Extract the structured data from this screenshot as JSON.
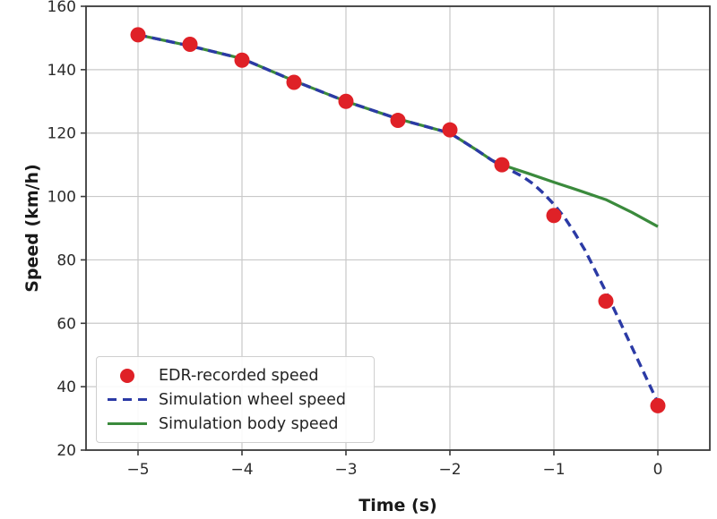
{
  "chart_data": {
    "type": "scatter+line",
    "title": "",
    "xlabel": "Time (s)",
    "ylabel": "Speed (km/h)",
    "xlim": [
      -5.5,
      0.5
    ],
    "ylim": [
      20,
      160
    ],
    "xticks": [
      -5,
      -4,
      -3,
      -2,
      -1,
      0
    ],
    "xtick_labels": [
      "−5",
      "−4",
      "−3",
      "−2",
      "−1",
      "0"
    ],
    "yticks": [
      20,
      40,
      60,
      80,
      100,
      120,
      140,
      160
    ],
    "ytick_labels": [
      "20",
      "40",
      "60",
      "80",
      "100",
      "120",
      "140",
      "160"
    ],
    "grid": true,
    "legend_position": "lower left",
    "colors": {
      "grid": "#c9c9c9",
      "spine": "#3a3a3a",
      "tick_text": "#2b2b2b",
      "red": "#df2127",
      "blue": "#2b3aa5",
      "green": "#3a8a3c"
    },
    "series": [
      {
        "name": "EDR-recorded speed",
        "type": "scatter",
        "marker": "circle",
        "marker_radius": 8.5,
        "color": "#df2127",
        "x": [
          -5,
          -4.5,
          -4,
          -3.5,
          -3,
          -2.5,
          -2,
          -1.5,
          -1,
          -0.5,
          0
        ],
        "y": [
          151,
          148,
          143,
          136,
          130,
          124,
          121,
          110,
          94,
          67,
          34
        ]
      },
      {
        "name": "Simulation wheel speed",
        "type": "line",
        "line_style": "dashed",
        "width": 3.4,
        "dash": "10 6",
        "color": "#2b3aa5",
        "x": [
          -5,
          -4.5,
          -4,
          -3.5,
          -3,
          -2.5,
          -2,
          -1.75,
          -1.6,
          -1.5,
          -1.4,
          -1.3,
          -1.2,
          -1.1,
          -1,
          -0.9,
          -0.8,
          -0.7,
          -0.6,
          -0.5,
          -0.4,
          -0.3,
          -0.2,
          -0.1,
          0
        ],
        "y": [
          151,
          147.5,
          143.5,
          136.5,
          130,
          124.5,
          120,
          114.8,
          111.5,
          109.5,
          108,
          106.3,
          104,
          101,
          97.5,
          93.5,
          88.5,
          83,
          76.5,
          70,
          63,
          56,
          49,
          42,
          35
        ]
      },
      {
        "name": "Simulation body speed",
        "type": "line",
        "line_style": "solid",
        "width": 3.2,
        "color": "#3a8a3c",
        "x": [
          -5,
          -4.5,
          -4,
          -3.5,
          -3,
          -2.5,
          -2,
          -1.75,
          -1.6,
          -1.5,
          -1.25,
          -1,
          -0.75,
          -0.5,
          -0.25,
          0
        ],
        "y": [
          151,
          147.5,
          143.5,
          136.5,
          130,
          124.5,
          120,
          114.8,
          111.5,
          110,
          107.3,
          104.5,
          101.8,
          99,
          95,
          90.5
        ]
      }
    ]
  }
}
